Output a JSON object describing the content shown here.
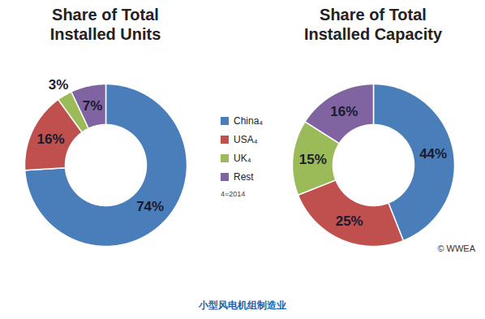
{
  "chart_data": [
    {
      "type": "pie",
      "title": "Share of Total\nInstalled Units",
      "categories": [
        "China₄",
        "USA₄",
        "UK₄",
        "Rest"
      ],
      "values": [
        74,
        16,
        3,
        7
      ],
      "value_labels": [
        "74%",
        "16%",
        "3%",
        "7%"
      ],
      "colors": [
        "#4a7ebb",
        "#c0504d",
        "#9bbb59",
        "#8064a2"
      ],
      "data_labels": true,
      "legend": "center"
    },
    {
      "type": "pie",
      "title": "Share of Total\nInstalled Capacity",
      "categories": [
        "China₄",
        "USA₄",
        "UK₄",
        "Rest"
      ],
      "values": [
        44,
        25,
        15,
        16
      ],
      "value_labels": [
        "44%",
        "25%",
        "15%",
        "16%"
      ],
      "colors": [
        "#4a7ebb",
        "#c0504d",
        "#9bbb59",
        "#8064a2"
      ],
      "data_labels": true,
      "legend": "center"
    }
  ],
  "legend_note": "4=2014",
  "source": "© WWEA",
  "caption": "小型风电机组制造业"
}
